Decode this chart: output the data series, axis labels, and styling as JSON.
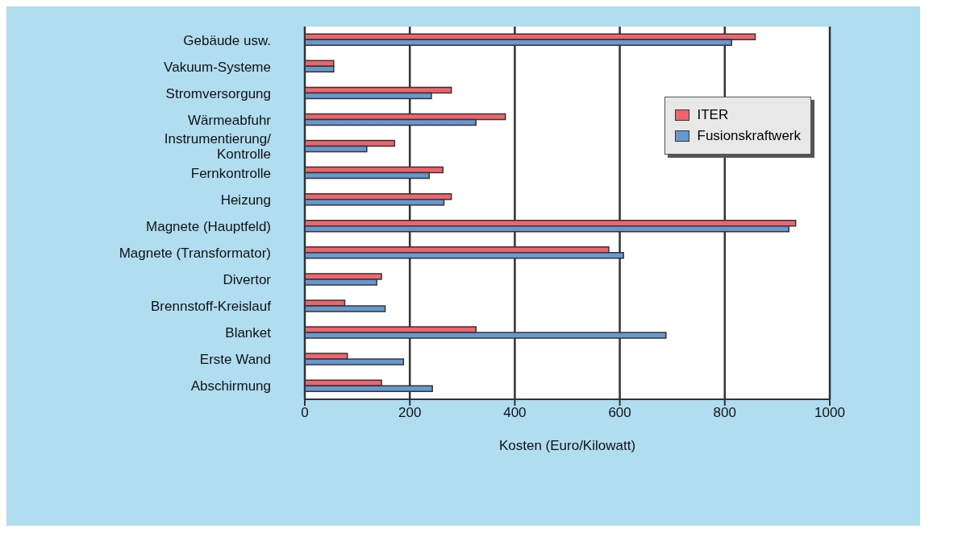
{
  "chart_data": {
    "type": "bar",
    "orientation": "horizontal",
    "xlabel": "Kosten (Euro/Kilowatt)",
    "categories": [
      "Gebäude usw.",
      "Vakuum-Systeme",
      "Stromversorgung",
      "Wärmeabfuhr",
      "Instrumentierung/\nKontrolle",
      "Fernkontrolle",
      "Heizung",
      "Magnete (Hauptfeld)",
      "Magnete (Transformator)",
      "Divertor",
      "Brennstoff-Kreislauf",
      "Blanket",
      "Erste Wand",
      "Abschirmung"
    ],
    "series": [
      {
        "name": "ITER",
        "color": "#f0646c",
        "values": [
          858,
          55,
          279,
          382,
          171,
          263,
          279,
          935,
          579,
          146,
          76,
          326,
          81,
          146
        ]
      },
      {
        "name": "Fusionskraftwerk",
        "color": "#6699d0",
        "values": [
          813,
          55,
          241,
          326,
          118,
          237,
          265,
          922,
          607,
          137,
          153,
          688,
          188,
          243
        ]
      }
    ],
    "xlim": [
      0,
      1000
    ],
    "xticks": [
      0,
      200,
      400,
      600,
      800,
      1000
    ],
    "grid": "x",
    "legend": "top right"
  }
}
